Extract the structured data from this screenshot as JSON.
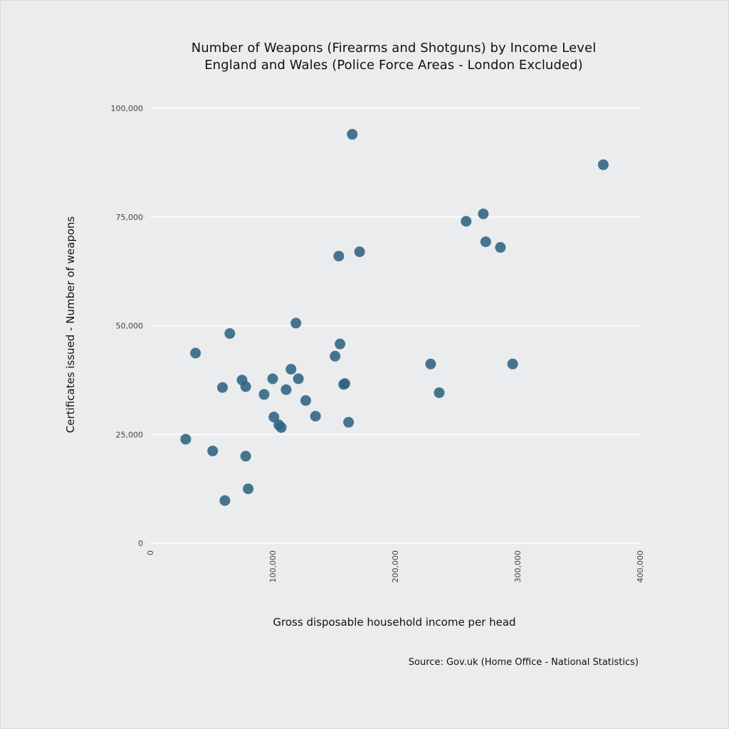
{
  "chart_data": {
    "type": "scatter",
    "title": "Number of Weapons (Firearms and Shotguns) by Income Level",
    "subtitle": "England and Wales (Police Force Areas - London Excluded)",
    "xlabel": "Gross disposable household income per head",
    "ylabel": "Certificates issued - Number of weapons",
    "source": "Source: Gov.uk (Home Office - National Statistics)",
    "xlim": [
      0,
      400000
    ],
    "ylim": [
      0,
      100000
    ],
    "x_ticks": [
      0,
      100000,
      200000,
      300000,
      400000
    ],
    "x_tick_labels": [
      "0",
      "100,000",
      "200,000",
      "300,000",
      "400,000"
    ],
    "y_ticks": [
      0,
      25000,
      50000,
      75000,
      100000
    ],
    "y_tick_labels": [
      "0",
      "25,000",
      "50,000",
      "75,000",
      "100,000"
    ],
    "grid": "horizontal",
    "marker_color": "#2f6382",
    "points": [
      {
        "x": 165000,
        "y": 94000
      },
      {
        "x": 370000,
        "y": 87000
      },
      {
        "x": 272000,
        "y": 75700
      },
      {
        "x": 258000,
        "y": 74000
      },
      {
        "x": 274000,
        "y": 69300
      },
      {
        "x": 286000,
        "y": 68000
      },
      {
        "x": 171000,
        "y": 67000
      },
      {
        "x": 154000,
        "y": 66000
      },
      {
        "x": 119000,
        "y": 50600
      },
      {
        "x": 65000,
        "y": 48200
      },
      {
        "x": 155000,
        "y": 45800
      },
      {
        "x": 37000,
        "y": 43700
      },
      {
        "x": 151000,
        "y": 43000
      },
      {
        "x": 229000,
        "y": 41200
      },
      {
        "x": 296000,
        "y": 41200
      },
      {
        "x": 115000,
        "y": 40000
      },
      {
        "x": 100000,
        "y": 37800
      },
      {
        "x": 121000,
        "y": 37800
      },
      {
        "x": 75000,
        "y": 37500
      },
      {
        "x": 158000,
        "y": 36500
      },
      {
        "x": 159000,
        "y": 36700
      },
      {
        "x": 59000,
        "y": 35800
      },
      {
        "x": 78000,
        "y": 36000
      },
      {
        "x": 111000,
        "y": 35300
      },
      {
        "x": 236000,
        "y": 34600
      },
      {
        "x": 93000,
        "y": 34200
      },
      {
        "x": 127000,
        "y": 32800
      },
      {
        "x": 135000,
        "y": 29200
      },
      {
        "x": 101000,
        "y": 29000
      },
      {
        "x": 162000,
        "y": 27800
      },
      {
        "x": 105000,
        "y": 27200
      },
      {
        "x": 107000,
        "y": 26600
      },
      {
        "x": 29000,
        "y": 23900
      },
      {
        "x": 51000,
        "y": 21200
      },
      {
        "x": 78000,
        "y": 20000
      },
      {
        "x": 80000,
        "y": 12500
      },
      {
        "x": 61000,
        "y": 9800
      }
    ]
  }
}
